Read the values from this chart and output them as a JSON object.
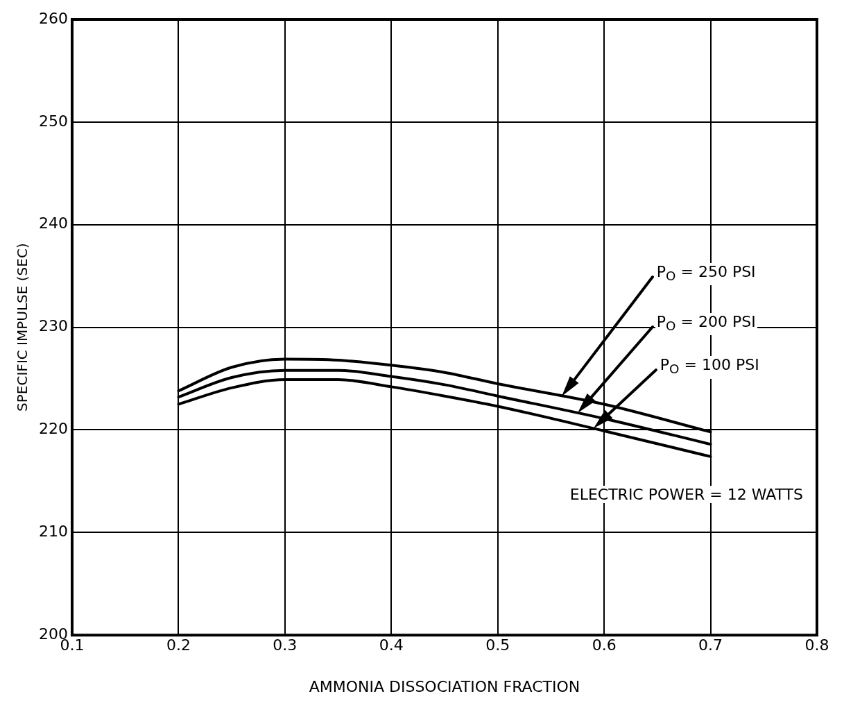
{
  "chart_data": {
    "type": "line",
    "xlabel": "AMMONIA DISSOCIATION FRACTION",
    "ylabel": "SPECIFIC IMPULSE (SEC)",
    "x": [
      0.2,
      0.25,
      0.3,
      0.35,
      0.4,
      0.45,
      0.5,
      0.6,
      0.7
    ],
    "series": [
      {
        "name": "P$_{O}$ = 250 PSI",
        "color": "#000000",
        "values": [
          223.8,
          226.1,
          226.9,
          226.8,
          226.3,
          225.6,
          224.5,
          222.5,
          219.8
        ]
      },
      {
        "name": "P$_{O}$ = 200 PSI",
        "color": "#000000",
        "values": [
          223.2,
          225.1,
          225.8,
          225.8,
          225.2,
          224.4,
          223.3,
          221.1,
          218.6
        ]
      },
      {
        "name": "P$_{O}$ = 100 PSI",
        "color": "#000000",
        "values": [
          222.5,
          224.1,
          224.9,
          224.9,
          224.2,
          223.3,
          222.3,
          219.9,
          217.4
        ]
      }
    ],
    "xlim": [
      0.1,
      0.8
    ],
    "xticks": [
      0.1,
      0.2,
      0.3,
      0.4,
      0.5,
      0.6,
      0.7,
      0.8
    ],
    "ylim": [
      200,
      260
    ],
    "yticks": [
      200,
      210,
      220,
      230,
      240,
      250,
      260
    ],
    "grid": true,
    "legend": false,
    "marker": "none",
    "line_style": "solid",
    "annotations": [
      "ELECTRIC POWER = 12 WATTS"
    ]
  }
}
